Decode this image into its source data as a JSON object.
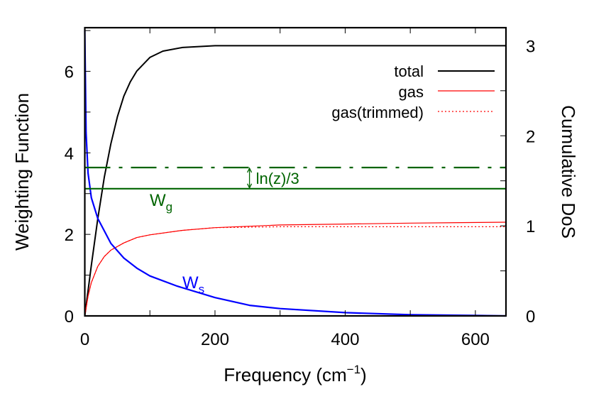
{
  "chart_data": {
    "type": "line",
    "xlabel": "Frequency (cm",
    "xlabel_sup": "−1",
    "xlabel_close": ")",
    "ylabel": "Weighting Function",
    "y2label": "Cumulative DoS",
    "xlim": [
      0,
      647
    ],
    "ylim": [
      0,
      7.07
    ],
    "y2lim": [
      0,
      3.2
    ],
    "x_ticks": [
      0,
      200,
      400,
      600
    ],
    "x_minor_ticks": [
      100,
      300,
      500
    ],
    "y_ticks": [
      0,
      2,
      4,
      6
    ],
    "y_minor_ticks": [
      1,
      3,
      5,
      7
    ],
    "y2_ticks": [
      0,
      1,
      2,
      3
    ],
    "y2_minor_ticks": [
      0.5,
      1.5,
      2.5
    ],
    "grid": false,
    "legend": "top-right",
    "series": [
      {
        "name": "total",
        "axis": "y2",
        "color": "#000000",
        "style": "solid",
        "x": [
          0,
          10,
          20,
          30,
          40,
          50,
          60,
          70,
          80,
          100,
          120,
          150,
          200,
          300,
          400,
          500,
          600,
          647
        ],
        "y": [
          0,
          0.56,
          1.08,
          1.54,
          1.91,
          2.21,
          2.44,
          2.6,
          2.72,
          2.87,
          2.94,
          2.98,
          3.0,
          3.0,
          3.0,
          3.0,
          3.0,
          3.0
        ]
      },
      {
        "name": "gas",
        "axis": "y2",
        "color": "#ff0000",
        "style": "solid",
        "x": [
          0,
          5,
          10,
          20,
          30,
          40,
          60,
          80,
          100,
          150,
          200,
          300,
          400,
          500,
          647
        ],
        "y": [
          0,
          0.22,
          0.37,
          0.55,
          0.66,
          0.73,
          0.81,
          0.87,
          0.9,
          0.95,
          0.98,
          1.01,
          1.02,
          1.03,
          1.04
        ]
      },
      {
        "name": "gas(trimmed)",
        "axis": "y2",
        "color": "#ff0000",
        "style": "dotted",
        "x": [
          0,
          5,
          10,
          20,
          30,
          40,
          60,
          80,
          100,
          150,
          200,
          300,
          400,
          500,
          647
        ],
        "y": [
          0,
          0.22,
          0.37,
          0.55,
          0.66,
          0.73,
          0.81,
          0.87,
          0.9,
          0.95,
          0.98,
          0.99,
          0.99,
          0.99,
          0.99
        ]
      },
      {
        "axis": "y",
        "color": "#0000ff",
        "style": "solid",
        "x": [
          0,
          2,
          5,
          10,
          20,
          40,
          60,
          80,
          100,
          142,
          200,
          253,
          300,
          400,
          500,
          600,
          647
        ],
        "y": [
          7.0,
          4.5,
          3.5,
          2.9,
          2.39,
          1.78,
          1.42,
          1.17,
          0.98,
          0.73,
          0.45,
          0.26,
          0.18,
          0.08,
          0.03,
          0.01,
          0.0
        ]
      }
    ],
    "hlines": [
      {
        "axis": "y",
        "value": 3.12,
        "color": "#006400",
        "style": "solid"
      },
      {
        "axis": "y",
        "value": 3.64,
        "color": "#006400",
        "style": "dash-dot"
      }
    ],
    "annotations": [
      {
        "text": "W",
        "sub": "g",
        "color": "#006400"
      },
      {
        "text": "W",
        "sub": "s",
        "color": "#0000ff"
      },
      {
        "text": "ln(z)/3",
        "color": "#006400",
        "at_x": 253
      }
    ]
  }
}
